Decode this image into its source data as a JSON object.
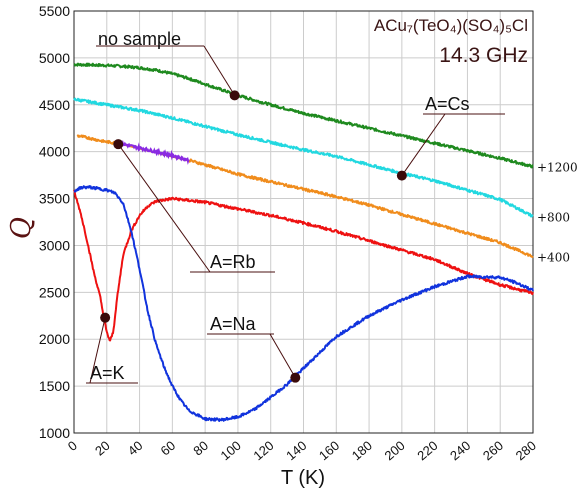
{
  "chart_data": {
    "type": "line",
    "title_line1": "ACu₇(TeO₄)(SO₄)₅Cl",
    "title_line2": "14.3 GHz",
    "xlabel": "T (K)",
    "ylabel": "Q",
    "xlim": [
      0,
      280
    ],
    "ylim": [
      1000,
      5500
    ],
    "xticks": [
      0,
      20,
      40,
      60,
      80,
      100,
      120,
      140,
      160,
      180,
      200,
      220,
      240,
      260,
      280
    ],
    "yticks": [
      1000,
      1500,
      2000,
      2500,
      3000,
      3500,
      4000,
      4500,
      5000,
      5500
    ],
    "grid": true,
    "series": [
      {
        "name": "no sample",
        "offset_label": "+1200",
        "color": "#1f8a1f",
        "x": [
          0,
          10,
          20,
          30,
          40,
          50,
          60,
          70,
          80,
          90,
          100,
          120,
          140,
          160,
          180,
          200,
          220,
          240,
          260,
          280
        ],
        "y": [
          4930,
          4925,
          4920,
          4910,
          4895,
          4870,
          4830,
          4780,
          4720,
          4660,
          4600,
          4500,
          4410,
          4330,
          4250,
          4170,
          4090,
          4010,
          3930,
          3840
        ]
      },
      {
        "name": "A=Cs",
        "offset_label": "+800",
        "color": "#22d8e0",
        "x": [
          0,
          20,
          40,
          60,
          80,
          100,
          120,
          140,
          160,
          180,
          200,
          220,
          240,
          260,
          280
        ],
        "y": [
          4560,
          4500,
          4440,
          4360,
          4270,
          4180,
          4100,
          4020,
          3950,
          3860,
          3770,
          3690,
          3590,
          3490,
          3310
        ]
      },
      {
        "name": "A=Rb",
        "offset_label": "+400",
        "color": "#f08c1c",
        "x": [
          2,
          8,
          18,
          30,
          40,
          50,
          60,
          70,
          80,
          90,
          100,
          120,
          140,
          160,
          180,
          200,
          220,
          240,
          260,
          280
        ],
        "y": [
          4170,
          4150,
          4110,
          4080,
          4040,
          4000,
          3960,
          3910,
          3860,
          3810,
          3760,
          3680,
          3600,
          3520,
          3430,
          3330,
          3230,
          3130,
          3030,
          2880
        ],
        "low_temperature_segment_color": "#8a2be2",
        "low_temperature_segment_end_x": 70
      },
      {
        "name": "A=K",
        "color": "#ee1111",
        "x": [
          0,
          4,
          8,
          12,
          16,
          18,
          20,
          22,
          24,
          26,
          30,
          35,
          40,
          45,
          50,
          60,
          70,
          80,
          100,
          120,
          140,
          160,
          180,
          200,
          220,
          240,
          260,
          280
        ],
        "y": [
          3580,
          3350,
          3050,
          2720,
          2450,
          2250,
          2070,
          1980,
          2080,
          2400,
          2900,
          3160,
          3320,
          3420,
          3470,
          3500,
          3480,
          3460,
          3390,
          3320,
          3240,
          3150,
          3050,
          2950,
          2850,
          2700,
          2580,
          2490
        ]
      },
      {
        "name": "A=Na",
        "color": "#1133dd",
        "x": [
          0,
          5,
          10,
          20,
          25,
          30,
          35,
          40,
          45,
          50,
          55,
          60,
          65,
          70,
          80,
          90,
          100,
          110,
          120,
          130,
          140,
          150,
          160,
          180,
          200,
          220,
          240,
          260,
          270,
          280
        ],
        "y": [
          3580,
          3620,
          3620,
          3590,
          3560,
          3450,
          3150,
          2750,
          2300,
          1950,
          1700,
          1500,
          1350,
          1240,
          1150,
          1140,
          1170,
          1250,
          1380,
          1520,
          1690,
          1860,
          2030,
          2250,
          2420,
          2560,
          2670,
          2660,
          2600,
          2520
        ]
      }
    ],
    "annotations": [
      {
        "text": "no sample",
        "x": 98,
        "y": 4600
      },
      {
        "text": "A=Cs",
        "x": 200,
        "y": 3745
      },
      {
        "text": "A=Rb",
        "x": 27,
        "y": 4080
      },
      {
        "text": "A=K",
        "x": 19,
        "y": 2230
      },
      {
        "text": "A=Na",
        "x": 135,
        "y": 1590
      }
    ]
  }
}
